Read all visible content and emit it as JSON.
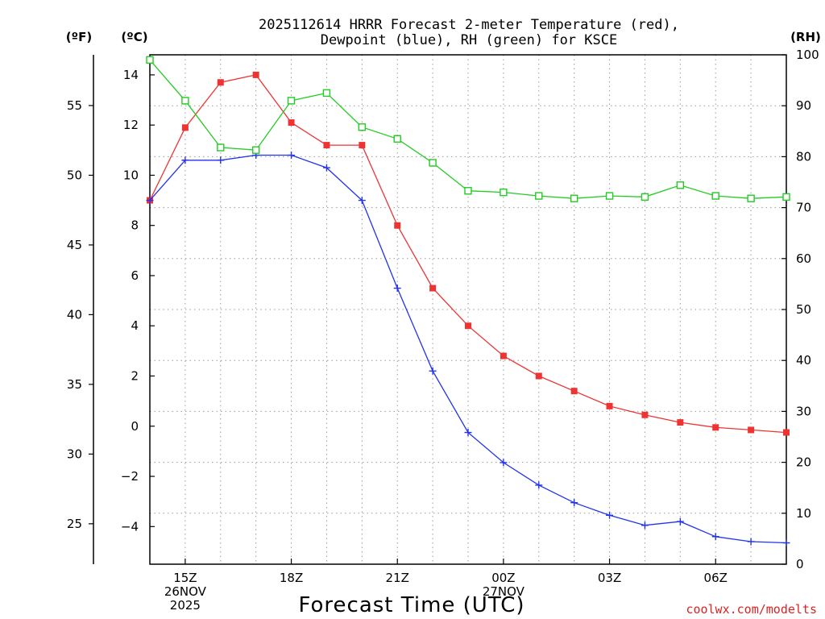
{
  "chart_data": {
    "type": "line",
    "title_lines": [
      "2025112614 HRRR Forecast 2-meter Temperature (red),",
      "Dewpoint (blue), RH (green) for KSCE"
    ],
    "xlabel": "Forecast Time (UTC)",
    "credit": "coolwx.com/modelts",
    "units": {
      "f": "(ºF)",
      "c": "(ºC)",
      "rh": "(RH)"
    },
    "x_hours": [
      14,
      15,
      16,
      17,
      18,
      19,
      20,
      21,
      22,
      23,
      24,
      25,
      26,
      27,
      28,
      29,
      30,
      31,
      32
    ],
    "xlim": [
      14,
      32
    ],
    "x_ticks": [
      {
        "hour": 15,
        "lines": [
          "15Z",
          "26NOV",
          "2025"
        ]
      },
      {
        "hour": 18,
        "lines": [
          "18Z"
        ]
      },
      {
        "hour": 21,
        "lines": [
          "21Z"
        ]
      },
      {
        "hour": 24,
        "lines": [
          "00Z",
          "27NOV"
        ]
      },
      {
        "hour": 27,
        "lines": [
          "03Z"
        ]
      },
      {
        "hour": 30,
        "lines": [
          "06Z"
        ]
      }
    ],
    "c_axis": {
      "ylim": [
        -5.5,
        14.8
      ],
      "ticks": [
        "14",
        "12",
        "10",
        "8",
        "6",
        "4",
        "2",
        "0",
        "-2",
        "-4"
      ]
    },
    "f_axis": {
      "ticks": [
        "55",
        "50",
        "45",
        "40",
        "35",
        "30",
        "25"
      ]
    },
    "rh_axis": {
      "ylim": [
        0,
        100
      ],
      "ticks": [
        "100",
        "90",
        "80",
        "70",
        "60",
        "50",
        "40",
        "30",
        "20",
        "10",
        "0"
      ]
    },
    "series": [
      {
        "name": "Temperature",
        "axis": "c",
        "color": "#ee3333",
        "marker": "filled-square",
        "values": [
          9.0,
          11.9,
          13.7,
          14.0,
          12.1,
          11.2,
          11.2,
          8.0,
          5.5,
          4.0,
          2.8,
          2.0,
          1.4,
          0.8,
          0.45,
          0.15,
          -0.05,
          -0.15,
          -0.25
        ]
      },
      {
        "name": "Dewpoint",
        "axis": "c",
        "color": "#2233ee",
        "marker": "plus",
        "values": [
          9.0,
          10.6,
          10.6,
          10.8,
          10.8,
          10.3,
          9.0,
          5.5,
          2.2,
          -0.25,
          -1.45,
          -2.35,
          -3.05,
          -3.55,
          -3.95,
          -3.8,
          -4.4,
          -4.6,
          -4.65
        ]
      },
      {
        "name": "RH",
        "axis": "rh",
        "color": "#22cc22",
        "marker": "open-square",
        "values": [
          99.0,
          91.0,
          81.8,
          81.3,
          91.0,
          92.5,
          85.8,
          83.5,
          78.8,
          73.3,
          73.0,
          72.3,
          71.8,
          72.3,
          72.1,
          74.4,
          72.3,
          71.8,
          72.1
        ]
      }
    ]
  }
}
